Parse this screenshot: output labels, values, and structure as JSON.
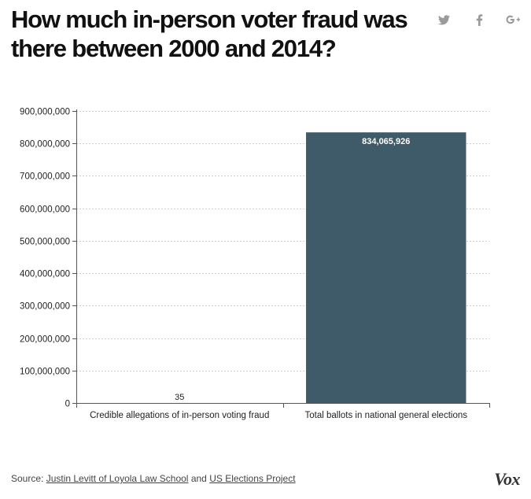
{
  "header": {
    "title": "How much in-person voter fraud was there between 2000 and 2014?"
  },
  "share": {
    "icons": [
      "twitter-icon",
      "facebook-icon",
      "google-plus-icon"
    ],
    "icon_color": "#9a9a9a"
  },
  "chart_data": {
    "type": "bar",
    "title": "How much in-person voter fraud was there between 2000 and 2014?",
    "xlabel": "",
    "ylabel": "",
    "categories": [
      "Credible allegations of in-person voting fraud",
      "Total ballots in national general elections"
    ],
    "values": [
      35,
      834065926
    ],
    "data_labels": [
      "35",
      "834,065,926"
    ],
    "ylim": [
      0,
      900000000
    ],
    "yticks": [
      0,
      100000000,
      200000000,
      300000000,
      400000000,
      500000000,
      600000000,
      700000000,
      800000000,
      900000000
    ],
    "ytick_labels": [
      "0",
      "100,000,000",
      "200,000,000",
      "300,000,000",
      "400,000,000",
      "500,000,000",
      "600,000,000",
      "700,000,000",
      "800,000,000",
      "900,000,000"
    ],
    "grid": true,
    "legend": "none",
    "bar_color": "#3f5a69",
    "label_color_inside": "#ffffff",
    "label_color_outside": "#222222"
  },
  "footer": {
    "source_prefix": "Source: ",
    "source_link_1": "Justin Levitt of Loyola Law School",
    "source_and": " and ",
    "source_link_2": "US Elections Project",
    "logo": "Vox"
  }
}
